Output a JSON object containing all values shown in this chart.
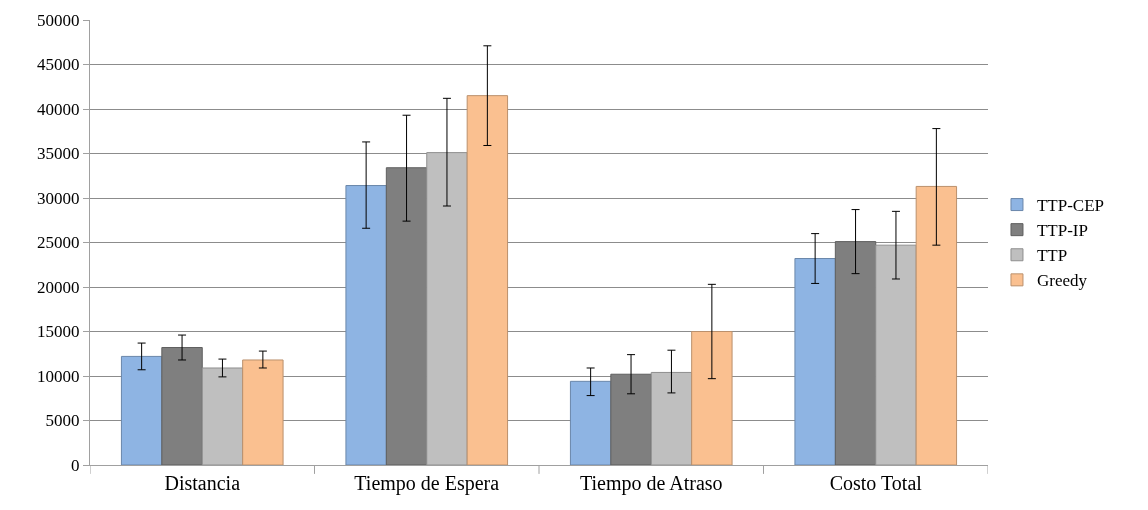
{
  "chart_data": {
    "type": "bar",
    "categories": [
      "Distancia",
      "Tiempo de Espera",
      "Tiempo de Atraso",
      "Costo Total"
    ],
    "series": [
      {
        "name": "TTP-CEP",
        "color": "#8eb4e3",
        "values": [
          12200,
          31400,
          9400,
          23200
        ],
        "errors": [
          [
            10700,
            13700
          ],
          [
            26600,
            36300
          ],
          [
            7800,
            10900
          ],
          [
            20400,
            26000
          ]
        ]
      },
      {
        "name": "TTP-IP",
        "color": "#7f7f7f",
        "values": [
          13200,
          33400,
          10200,
          25100
        ],
        "errors": [
          [
            11800,
            14600
          ],
          [
            27400,
            39300
          ],
          [
            8000,
            12400
          ],
          [
            21500,
            28700
          ]
        ]
      },
      {
        "name": "TTP",
        "color": "#bfbfbf",
        "values": [
          10900,
          35100,
          10400,
          24700
        ],
        "errors": [
          [
            9900,
            11900
          ],
          [
            29100,
            41200
          ],
          [
            8100,
            12900
          ],
          [
            20900,
            28500
          ]
        ]
      },
      {
        "name": "Greedy",
        "color": "#fac090",
        "values": [
          11800,
          41500,
          15000,
          31300
        ],
        "errors": [
          [
            10900,
            12800
          ],
          [
            35900,
            47100
          ],
          [
            9700,
            20300
          ],
          [
            24700,
            37800
          ]
        ]
      }
    ],
    "ylim": [
      0,
      50000
    ],
    "yticks": [
      0,
      5000,
      10000,
      15000,
      20000,
      25000,
      30000,
      35000,
      40000,
      45000,
      50000
    ],
    "grid": "y",
    "legend": "right"
  }
}
